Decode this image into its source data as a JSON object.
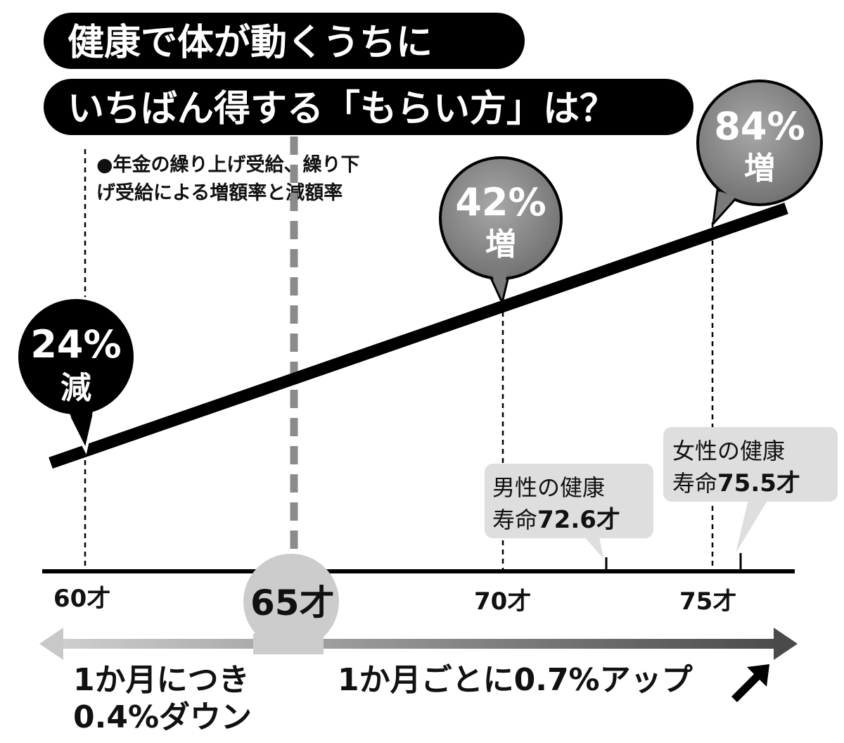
{
  "title": {
    "line1": "健康で体が動くうちに",
    "line2": "いちばん得する「もらい方」は？"
  },
  "subtitle": {
    "line1": "●年金の繰り上げ受給、繰り下",
    "line2": "げ受給による増額率と減額率"
  },
  "bubbles": [
    {
      "pct": "24%",
      "kanji": "減",
      "style": "black"
    },
    {
      "pct": "42%",
      "kanji": "増",
      "style": "gray"
    },
    {
      "pct": "84%",
      "kanji": "増",
      "style": "gray"
    }
  ],
  "axis": {
    "ticks": [
      "60才",
      "65才",
      "70才",
      "75才"
    ]
  },
  "callouts": {
    "male": {
      "line1": "男性の健康",
      "line2_prefix": "寿命",
      "line2_value": "72.6才"
    },
    "female": {
      "line1": "女性の健康",
      "line2_prefix": "寿命",
      "line2_value": "75.5才"
    }
  },
  "bottom": {
    "left_line1": "1か月につき",
    "left_line2": "0.4%ダウン",
    "right": "1か月ごとに0.7%アップ"
  },
  "chart_data": {
    "type": "line",
    "x": [
      60,
      65,
      70,
      75
    ],
    "y": [
      -24,
      0,
      42,
      84
    ],
    "xlabels": [
      "60才",
      "65才",
      "70才",
      "75才"
    ],
    "annotations": [
      "24% 減",
      "42% 増",
      "84% 増"
    ],
    "rate_early": "1か月につき0.4%ダウン",
    "rate_late": "1か月ごとに0.7%アップ",
    "healthy_life_expectancy": {
      "male": 72.6,
      "female": 75.5
    }
  },
  "colors": {
    "black": "#000000",
    "bubble_gray": "#8f8f8f",
    "callout_gray": "#dedede",
    "dashed_gray": "#808080",
    "arrow_left": "#c8c8c8",
    "arrow_right": "#555555",
    "circle_65": "#cccccc"
  }
}
